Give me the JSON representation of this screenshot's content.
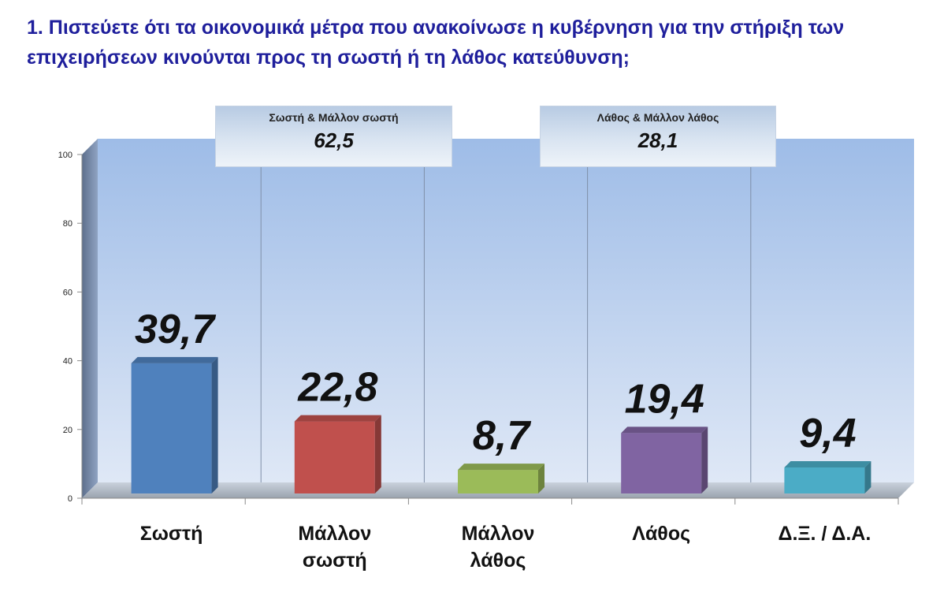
{
  "title": "1. Πιστεύετε ότι τα οικονομικά μέτρα που ανακοίνωσε η κυβέρνηση για την στήριξη των επιχειρήσεων κινούνται προς τη σωστή ή τη λάθος κατεύθυνση;",
  "summaries": [
    {
      "label": "Σωστή & Μάλλον σωστή",
      "value": "62,5"
    },
    {
      "label": "Λάθος & Μάλλον λάθος",
      "value": "28,1"
    }
  ],
  "chart_data": {
    "type": "bar",
    "categories": [
      "Σωστή",
      "Μάλλον σωστή",
      "Μάλλον λάθος",
      "Λάθος",
      "Δ.Ξ. / Δ.Α."
    ],
    "category_lines": [
      [
        "Σωστή"
      ],
      [
        "Μάλλον",
        "σωστή"
      ],
      [
        "Μάλλον",
        "λάθος"
      ],
      [
        "Λάθος"
      ],
      [
        "Δ.Ξ. / Δ.Α."
      ]
    ],
    "values": [
      39.7,
      22.8,
      8.7,
      19.4,
      9.4
    ],
    "data_labels": [
      "39,7",
      "22,8",
      "8,7",
      "19,4",
      "9,4"
    ],
    "colors": [
      "#4f81bd",
      "#c0504d",
      "#9bbb59",
      "#8064a2",
      "#4bacc6"
    ],
    "ylim": [
      0,
      100
    ],
    "yticks": [
      0,
      20,
      40,
      60,
      80,
      100
    ],
    "grid": false,
    "legend": "none",
    "xlabel": "",
    "ylabel": ""
  }
}
